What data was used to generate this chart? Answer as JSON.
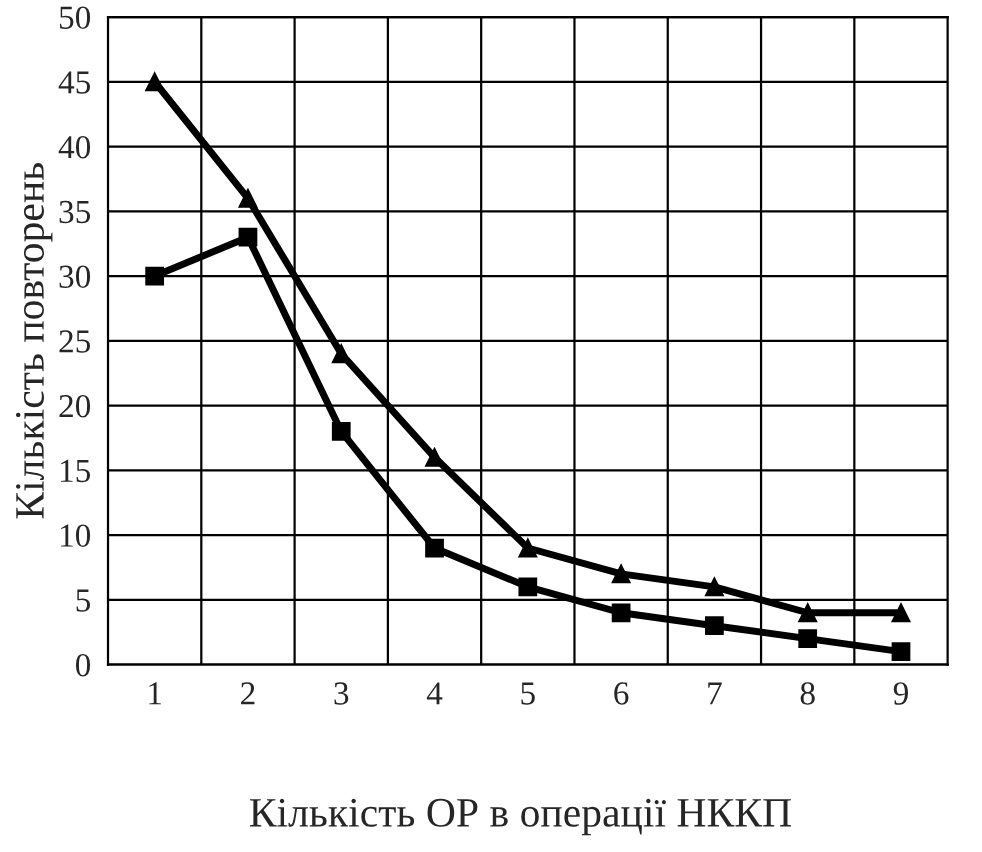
{
  "chart_data": {
    "type": "line",
    "xlabel": "Кількість ОР в операції НККП",
    "ylabel": "Кількість повторень",
    "categories": [
      "1",
      "2",
      "3",
      "4",
      "5",
      "6",
      "7",
      "8",
      "9"
    ],
    "series": [
      {
        "color": "#000000",
        "marker": "triangle",
        "values": [
          45,
          36,
          24,
          16,
          9,
          7,
          6,
          4,
          4
        ]
      },
      {
        "color": "#000000",
        "marker": "square",
        "values": [
          30,
          33,
          18,
          9,
          6,
          4,
          3,
          2,
          1
        ]
      }
    ],
    "ylim": [
      0,
      50
    ],
    "yticks": [
      0,
      5,
      10,
      15,
      20,
      25,
      30,
      35,
      40,
      45,
      50
    ],
    "grid": true,
    "line_style": "solid"
  }
}
